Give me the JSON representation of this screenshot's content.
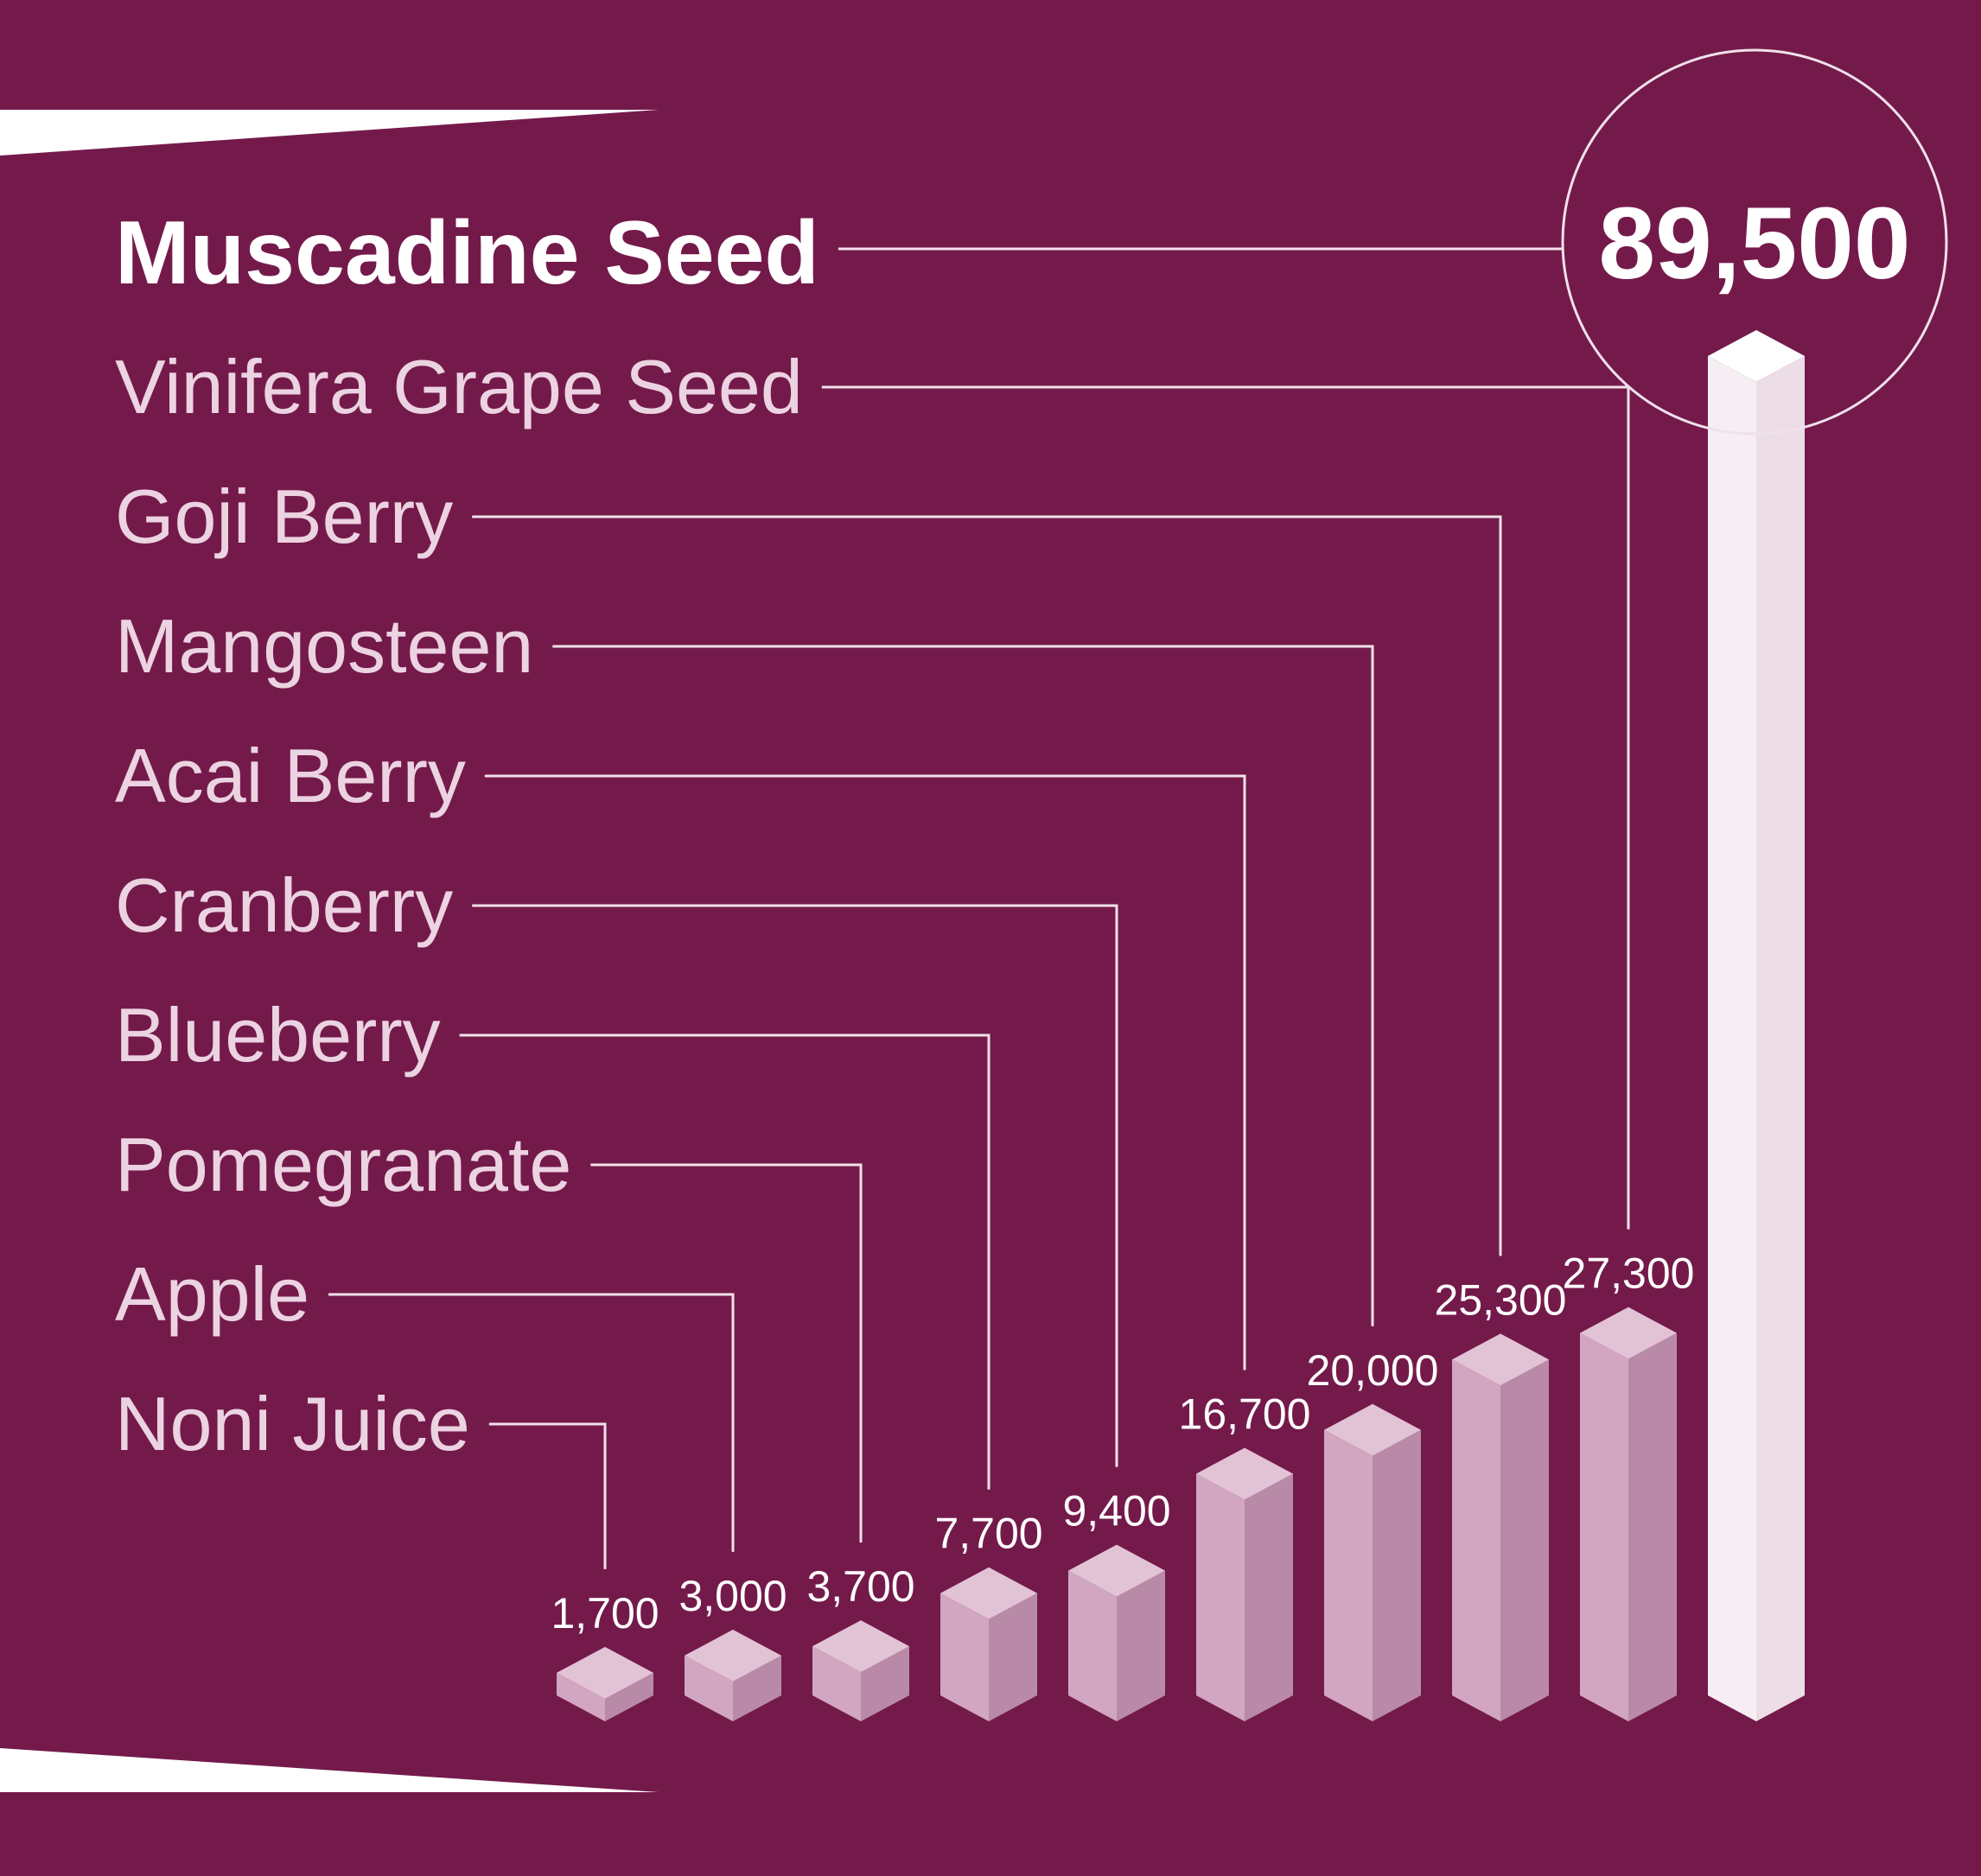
{
  "colors": {
    "background": "#741a4b",
    "bar_front": "#d2a6c1",
    "bar_side": "#b98aa8",
    "bar_top": "#e2c2d5",
    "highlight_front": "#f6eef3",
    "highlight_side": "#ecdde6",
    "label_text": "#ecd3e1",
    "value_text": "#ffffff",
    "leader_line": "#f1e1ea"
  },
  "chart_data": {
    "type": "bar",
    "style": "3d-isometric-columns",
    "categories": [
      "Noni Juice",
      "Apple",
      "Pomegranate",
      "Blueberry",
      "Cranberry",
      "Acai Berry",
      "Mangosteen",
      "Goji Berry",
      "Vinifera Grape Seed",
      "Muscadine Seed"
    ],
    "values": [
      1700,
      3000,
      3700,
      7700,
      9400,
      16700,
      20000,
      25300,
      27300,
      89500
    ],
    "value_labels": [
      "1,700",
      "3,000",
      "3,700",
      "7,700",
      "9,400",
      "16,700",
      "20,000",
      "25,300",
      "27,300",
      "89,500"
    ],
    "highlight": "Muscadine Seed",
    "title": "",
    "xlabel": "",
    "ylabel": "",
    "grid": false,
    "legend": "none"
  }
}
